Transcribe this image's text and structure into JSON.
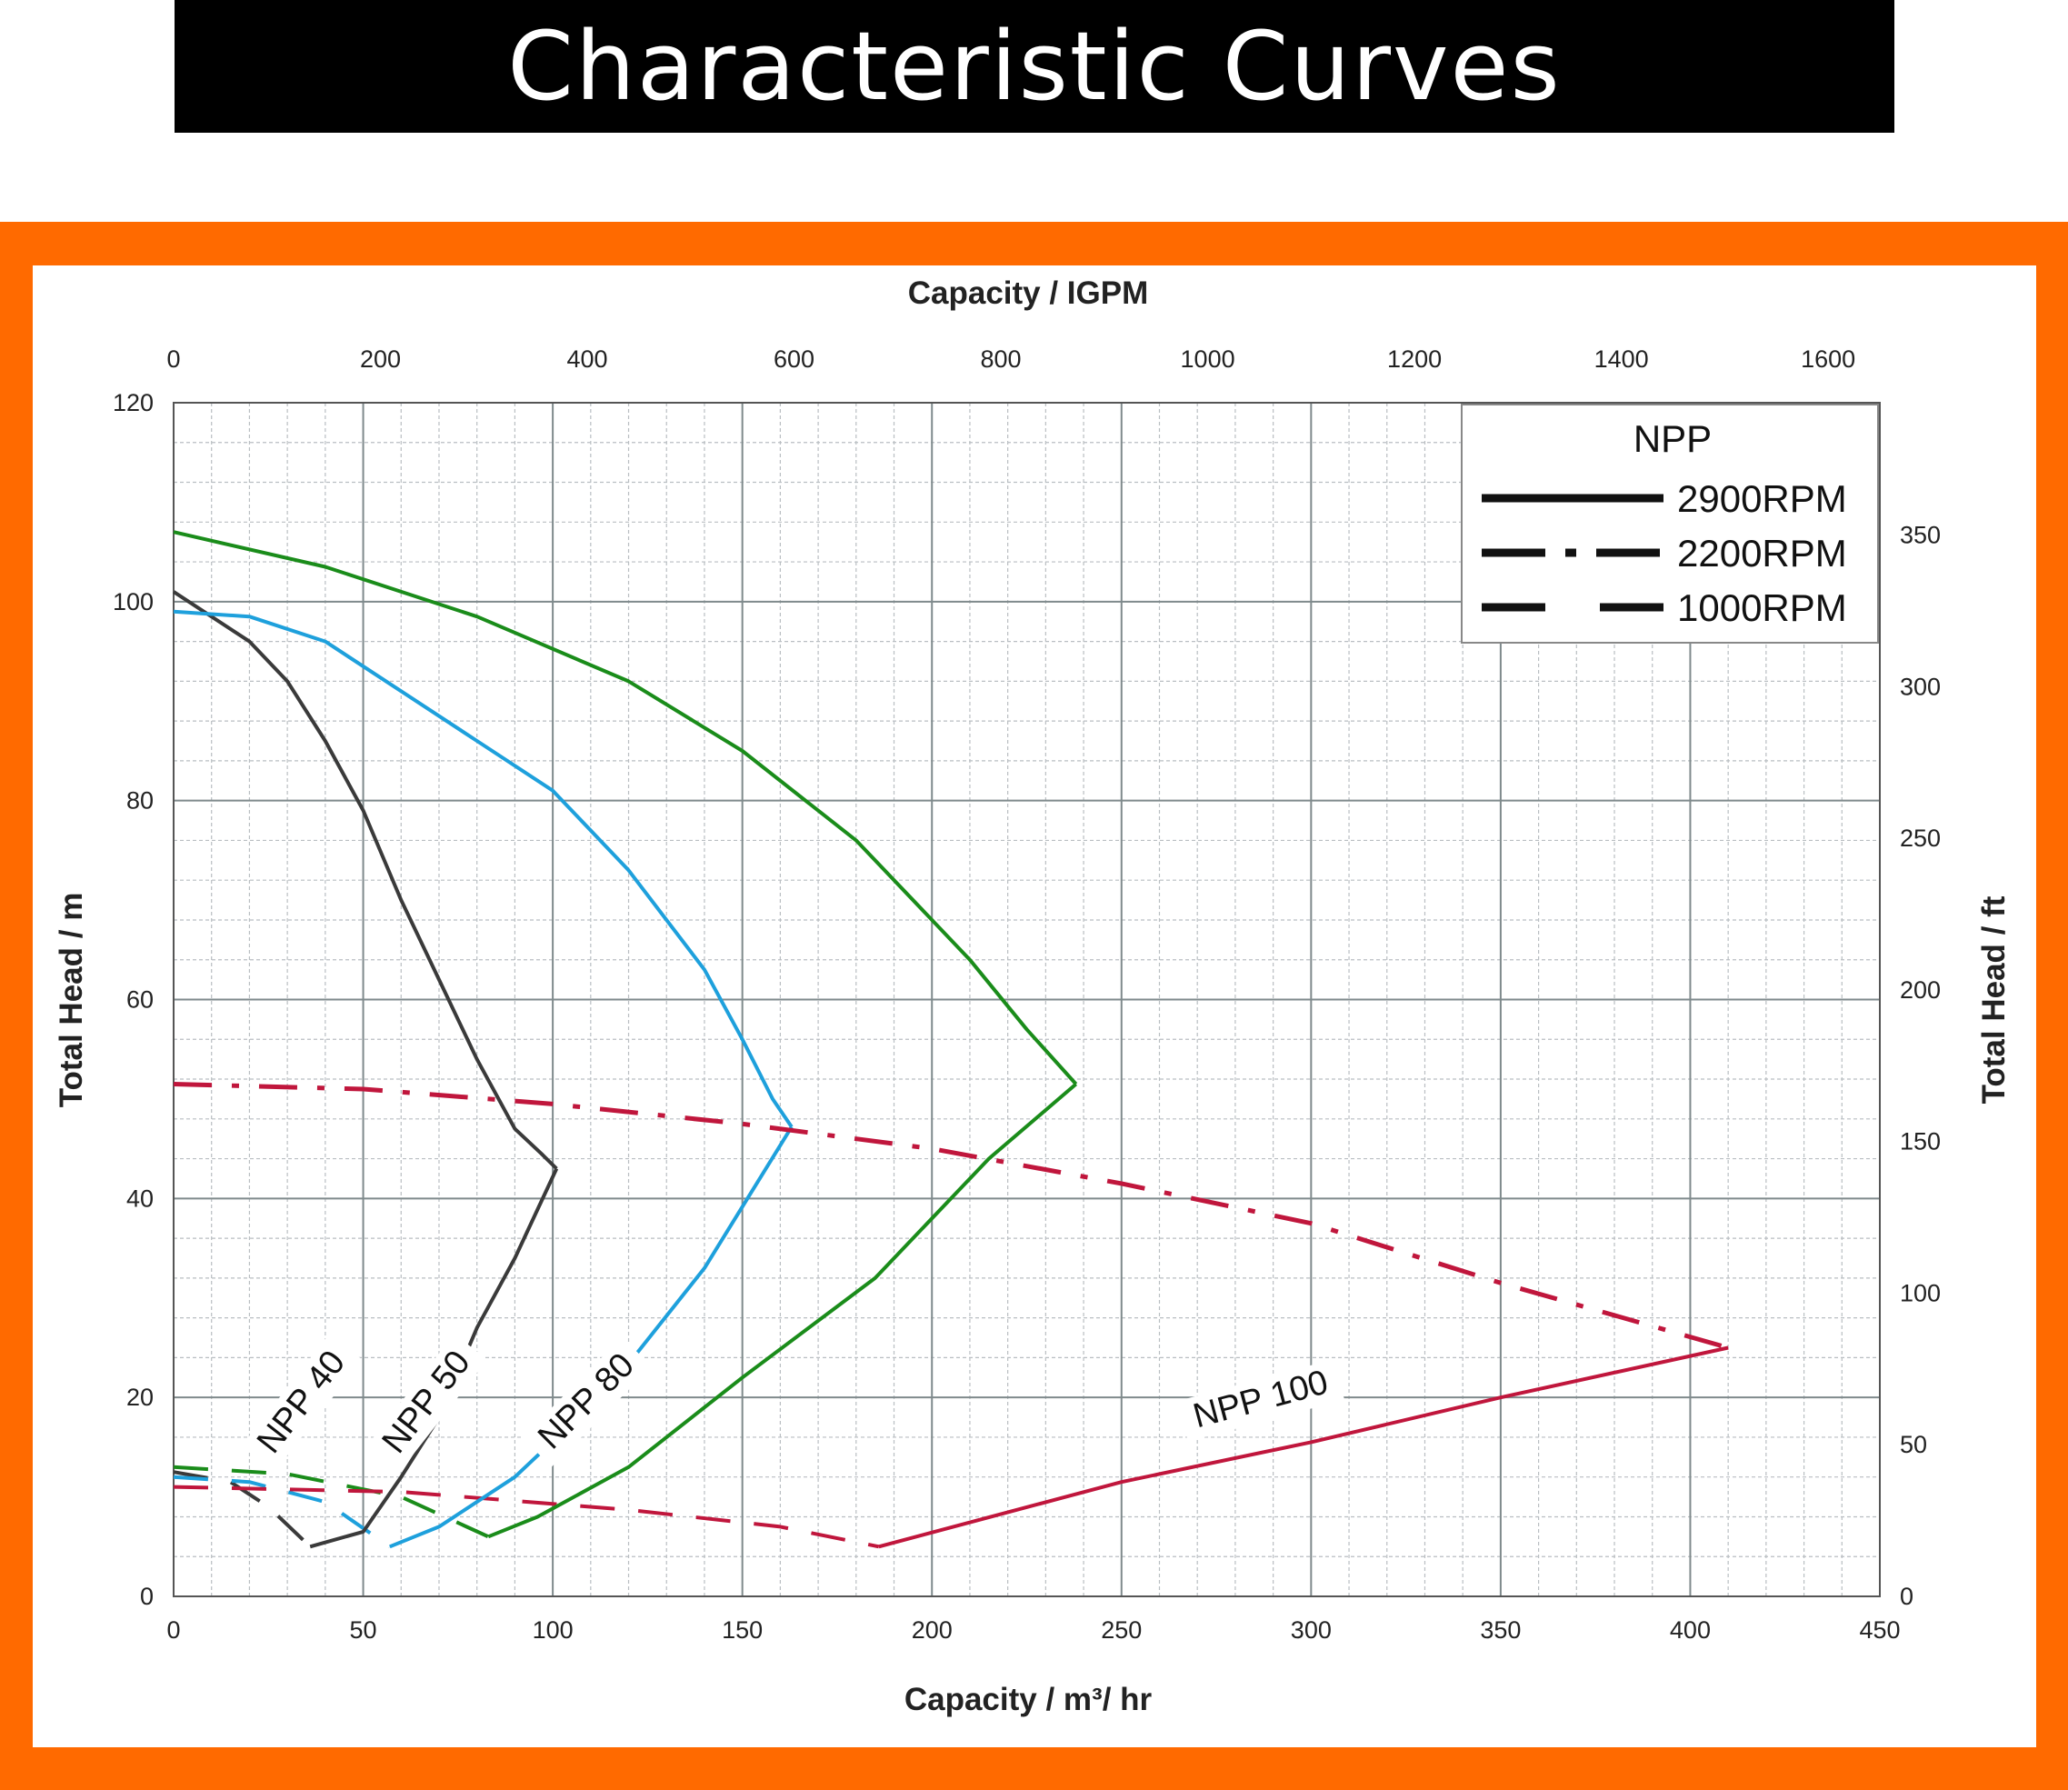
{
  "page": {
    "title": "Characteristic Curves",
    "colors": {
      "frame": "#ff6a00",
      "title_bg": "#000000",
      "title_text": "#ffffff"
    }
  },
  "chart_data": {
    "type": "line",
    "title": "",
    "xlabel": "Capacity / m³/ hr",
    "x2label": "Capacity / IGPM",
    "ylabel": "Total Head / m",
    "y2label": "Total Head / ft",
    "xlim": [
      0,
      450
    ],
    "ylim": [
      0,
      120
    ],
    "x2lim": [
      0,
      1650
    ],
    "y2lim": [
      0,
      393.7
    ],
    "x_ticks": [
      0,
      50,
      100,
      150,
      200,
      250,
      300,
      350,
      400,
      450
    ],
    "y_ticks": [
      0,
      20,
      40,
      60,
      80,
      100,
      120
    ],
    "x2_ticks": [
      0,
      200,
      400,
      600,
      800,
      1000,
      1200,
      1400,
      1600
    ],
    "y2_ticks": [
      0,
      50,
      100,
      150,
      200,
      250,
      300,
      350
    ],
    "grid": true,
    "legend": {
      "position": "top-right",
      "title": "NPP",
      "entries": [
        {
          "label": "2900RPM",
          "style": "solid"
        },
        {
          "label": "2200RPM",
          "style": "dashdot"
        },
        {
          "label": "1000RPM",
          "style": "dashed"
        }
      ]
    },
    "series": [
      {
        "model": "NPP 40",
        "color": "#3a3a3a",
        "label_at": [
          28,
          20
        ],
        "label_angle": -52,
        "points": [
          [
            0,
            101
          ],
          [
            20,
            96
          ],
          [
            30,
            92
          ],
          [
            40,
            86
          ],
          [
            50,
            79
          ],
          [
            60,
            70
          ],
          [
            70,
            62
          ],
          [
            80,
            54
          ],
          [
            90,
            47
          ],
          [
            97,
            44.5
          ],
          [
            101,
            43
          ],
          [
            90,
            34
          ],
          [
            80,
            27
          ],
          [
            70,
            18
          ],
          [
            60,
            12
          ],
          [
            50,
            6.5
          ],
          [
            36,
            5
          ]
        ]
      },
      {
        "model": "NPP 50",
        "color": "#1ea0dc",
        "label_at": [
          61,
          20
        ],
        "label_angle": -52,
        "points": [
          [
            0,
            99
          ],
          [
            20,
            98.5
          ],
          [
            40,
            96
          ],
          [
            60,
            91
          ],
          [
            80,
            86
          ],
          [
            100,
            81
          ],
          [
            120,
            73
          ],
          [
            140,
            63
          ],
          [
            150,
            56
          ],
          [
            158,
            50
          ],
          [
            163,
            47.2
          ],
          [
            140,
            33
          ],
          [
            115,
            21
          ],
          [
            90,
            12
          ],
          [
            70,
            7
          ],
          [
            57,
            5
          ]
        ]
      },
      {
        "model": "NPP 80",
        "color": "#1a8c1a",
        "label_at": [
          103,
          20
        ],
        "label_angle": -45,
        "points": [
          [
            0,
            107
          ],
          [
            40,
            103.5
          ],
          [
            80,
            98.5
          ],
          [
            120,
            92
          ],
          [
            150,
            85
          ],
          [
            180,
            76
          ],
          [
            210,
            64
          ],
          [
            225,
            57
          ],
          [
            238,
            51.5
          ],
          [
            215,
            44
          ],
          [
            185,
            32
          ],
          [
            150,
            22
          ],
          [
            120,
            13
          ],
          [
            96,
            8
          ],
          [
            83,
            6
          ]
        ]
      },
      {
        "model": "NPP 100",
        "color": "#c0163c",
        "label_at": [
          280,
          20
        ],
        "label_angle": -15,
        "points": [
          [
            0,
            51.5
          ],
          [
            50,
            51
          ],
          [
            100,
            49.5
          ],
          [
            150,
            47.5
          ],
          [
            200,
            45
          ],
          [
            250,
            41.5
          ],
          [
            300,
            37.5
          ],
          [
            350,
            31.5
          ],
          [
            410,
            25
          ],
          [
            350,
            20
          ],
          [
            300,
            15.5
          ],
          [
            250,
            11.5
          ],
          [
            186,
            5
          ]
        ]
      }
    ],
    "low_speed_series": [
      {
        "model": "NPP 40",
        "color": "#3a3a3a",
        "style": "dashed",
        "points": [
          [
            0,
            12.5
          ],
          [
            15,
            11.5
          ],
          [
            25,
            9
          ],
          [
            36,
            5
          ]
        ]
      },
      {
        "model": "NPP 50",
        "color": "#1ea0dc",
        "style": "dashed",
        "points": [
          [
            0,
            12
          ],
          [
            20,
            11.5
          ],
          [
            40,
            9.5
          ],
          [
            57,
            5
          ]
        ]
      },
      {
        "model": "NPP 80",
        "color": "#1a8c1a",
        "style": "dashed",
        "points": [
          [
            0,
            13
          ],
          [
            30,
            12.3
          ],
          [
            60,
            10
          ],
          [
            83,
            6
          ]
        ]
      },
      {
        "model": "NPP 100",
        "color": "#c0163c",
        "style": "dashed",
        "points": [
          [
            0,
            11
          ],
          [
            60,
            10.5
          ],
          [
            120,
            8.7
          ],
          [
            160,
            7
          ],
          [
            186,
            5
          ]
        ]
      }
    ]
  }
}
